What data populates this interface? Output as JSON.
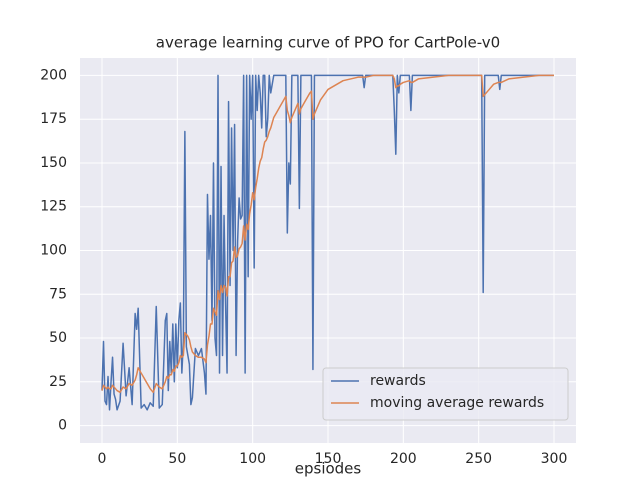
{
  "chart_data": {
    "type": "line",
    "title": "average learning curve of PPO for CartPole-v0",
    "xlabel": "epsiodes",
    "x": [
      0,
      1,
      2,
      3,
      4,
      5,
      6,
      7,
      8,
      9,
      10,
      12,
      14,
      16,
      18,
      20,
      22,
      23,
      24,
      26,
      28,
      30,
      32,
      34,
      36,
      38,
      40,
      42,
      43,
      44,
      45,
      46,
      47,
      48,
      49,
      50,
      51,
      52,
      53,
      54,
      55,
      56,
      57,
      58,
      59,
      60,
      62,
      64,
      66,
      68,
      69,
      70,
      71,
      72,
      73,
      74,
      75,
      76,
      77,
      78,
      79,
      80,
      81,
      82,
      83,
      84,
      85,
      86,
      87,
      88,
      89,
      90,
      91,
      92,
      93,
      94,
      95,
      96,
      97,
      98,
      99,
      100,
      101,
      102,
      103,
      104,
      105,
      106,
      107,
      108,
      109,
      110,
      111,
      112,
      114,
      116,
      118,
      120,
      122,
      123,
      124,
      125,
      126,
      128,
      130,
      131,
      132,
      134,
      136,
      138,
      139,
      140,
      141,
      145,
      150,
      160,
      170,
      173,
      174,
      175,
      180,
      190,
      193,
      194,
      195,
      196,
      197,
      198,
      200,
      204,
      205,
      206,
      210,
      220,
      230,
      240,
      250,
      252,
      253,
      254,
      260,
      263,
      264,
      265,
      270,
      280,
      290,
      300
    ],
    "series": [
      {
        "name": "rewards",
        "color": "#4c72b0",
        "values": [
          20,
          48,
          14,
          12,
          28,
          9,
          25,
          39,
          18,
          15,
          9,
          14,
          47,
          17,
          33,
          12,
          64,
          55,
          67,
          10,
          12,
          9,
          13,
          11,
          68,
          10,
          12,
          60,
          64,
          20,
          48,
          30,
          58,
          25,
          58,
          33,
          60,
          70,
          30,
          48,
          168,
          45,
          40,
          35,
          12,
          16,
          44,
          40,
          44,
          30,
          18,
          132,
          95,
          120,
          60,
          150,
          50,
          40,
          200,
          30,
          148,
          40,
          120,
          70,
          30,
          185,
          80,
          170,
          100,
          172,
          40,
          105,
          130,
          118,
          120,
          200,
          30,
          200,
          85,
          200,
          175,
          200,
          90,
          200,
          180,
          200,
          190,
          170,
          200,
          200,
          165,
          175,
          200,
          190,
          200,
          200,
          200,
          200,
          200,
          110,
          150,
          138,
          200,
          200,
          200,
          124,
          200,
          200,
          200,
          200,
          200,
          32,
          200,
          200,
          200,
          200,
          200,
          200,
          193,
          200,
          200,
          200,
          200,
          180,
          155,
          200,
          190,
          200,
          200,
          200,
          180,
          200,
          200,
          200,
          200,
          200,
          200,
          200,
          76,
          200,
          200,
          200,
          192,
          200,
          200,
          200,
          200,
          200
        ]
      },
      {
        "name": "moving average rewards",
        "color": "#dd8452",
        "values": [
          20,
          23,
          22,
          21,
          22,
          21,
          21,
          23,
          22,
          21,
          20,
          19,
          22,
          21,
          24,
          23,
          26,
          29,
          33,
          30,
          27,
          24,
          21,
          19,
          24,
          22,
          21,
          25,
          28,
          27,
          29,
          29,
          32,
          31,
          34,
          34,
          36,
          40,
          39,
          40,
          53,
          52,
          51,
          49,
          45,
          42,
          40,
          39,
          39,
          38,
          36,
          46,
          51,
          58,
          58,
          67,
          65,
          63,
          77,
          72,
          80,
          76,
          80,
          79,
          74,
          85,
          85,
          93,
          94,
          102,
          96,
          97,
          101,
          102,
          104,
          114,
          106,
          115,
          112,
          121,
          126,
          133,
          129,
          136,
          141,
          147,
          151,
          153,
          158,
          162,
          163,
          165,
          168,
          170,
          176,
          179,
          182,
          185,
          188,
          180,
          177,
          173,
          176,
          180,
          184,
          178,
          181,
          184,
          187,
          190,
          191,
          175,
          178,
          186,
          192,
          197,
          199,
          199,
          199,
          199,
          200,
          200,
          200,
          198,
          193,
          194,
          194,
          195,
          196,
          197,
          196,
          196,
          198,
          199,
          200,
          200,
          200,
          200,
          188,
          189,
          195,
          196,
          196,
          196,
          198,
          199,
          200,
          200
        ]
      }
    ],
    "xlim": [
      -14.6,
      314.6
    ],
    "xticks": [
      0,
      50,
      100,
      150,
      200,
      250,
      300
    ],
    "ylim": [
      -9.95,
      209.95
    ],
    "yticks": [
      0,
      25,
      50,
      75,
      100,
      125,
      150,
      175,
      200
    ],
    "grid": true,
    "legend": "lower right"
  }
}
